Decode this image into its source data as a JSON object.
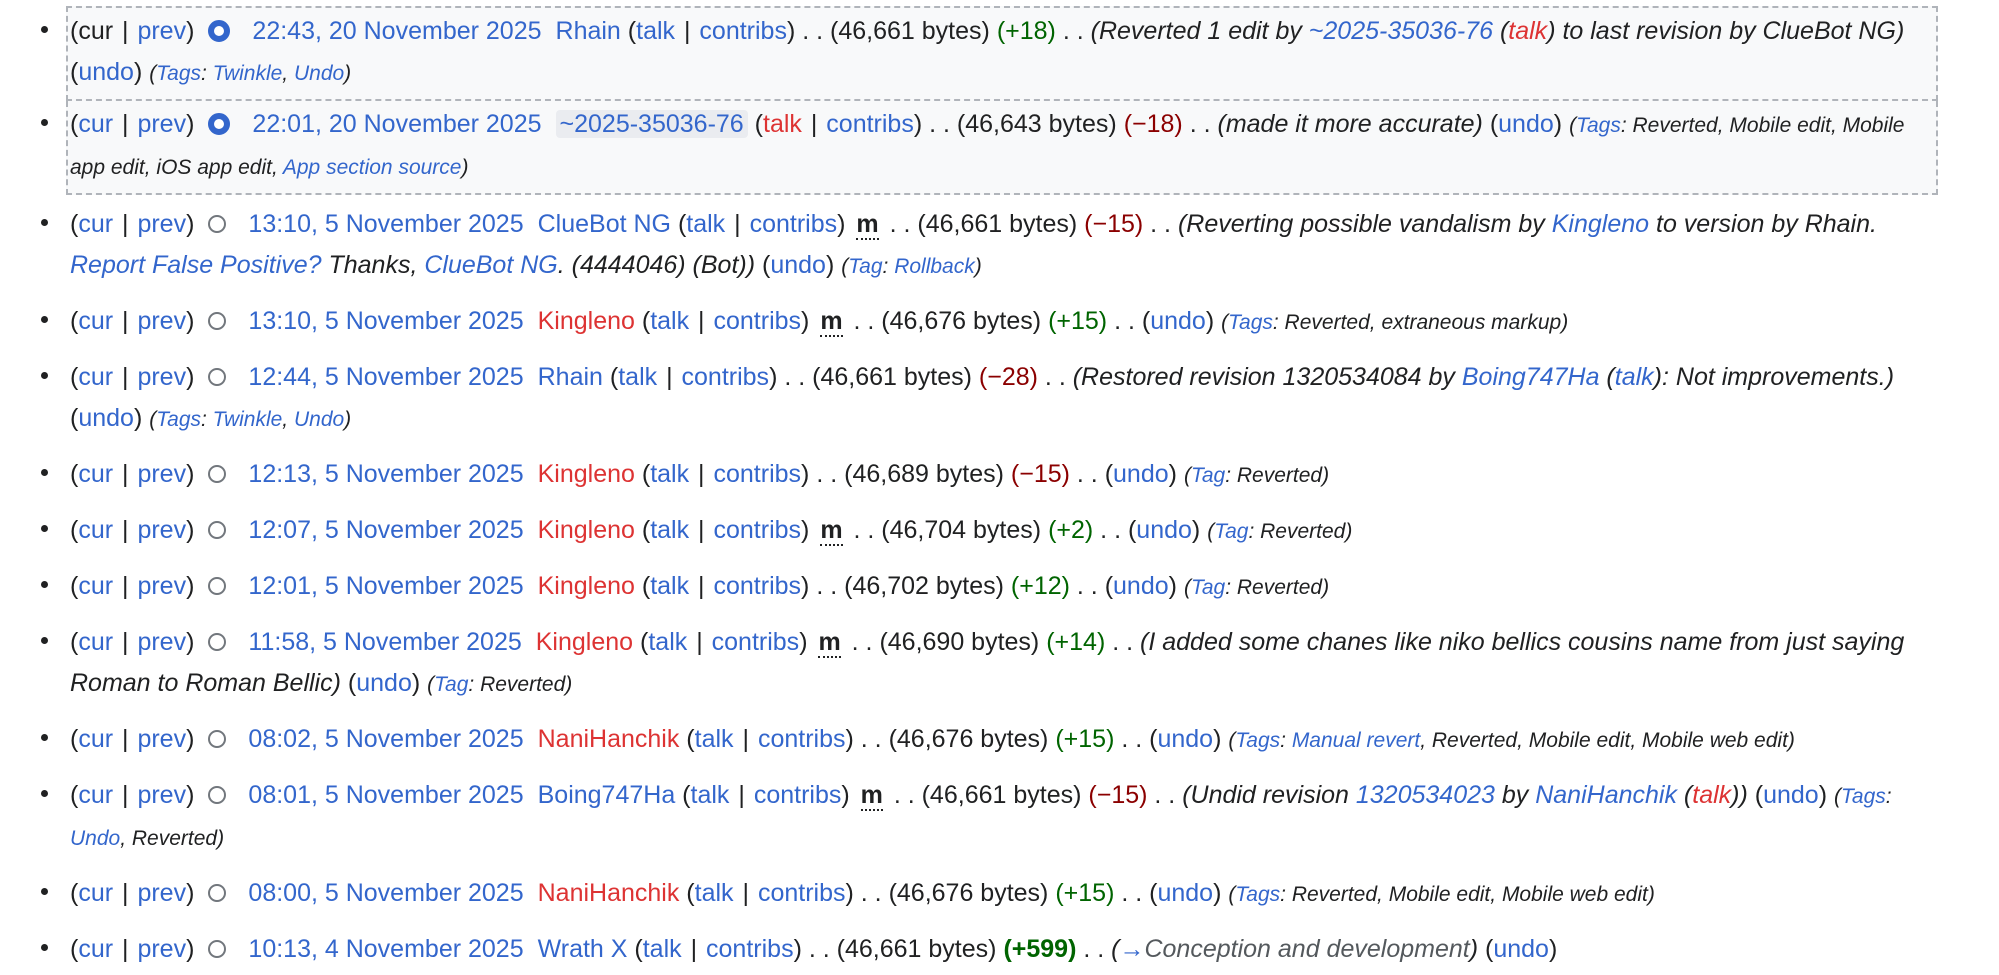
{
  "links": {
    "cur": "cur",
    "prev": "prev",
    "talk": "talk",
    "contribs": "contribs",
    "undo": "undo"
  },
  "labels": {
    "minor": "m",
    "tags": "Tags",
    "tag": "Tag"
  },
  "entries": [
    {
      "selected": true,
      "cur_is_link": false,
      "radio": "on",
      "timestamp": "22:43, 20 November 2025",
      "user": "Rhain",
      "user_red": false,
      "user_highlight": false,
      "minor": false,
      "size": "(46,661 bytes)",
      "diff": "(+18)",
      "diff_class": "pos",
      "summary_parts": [
        {
          "t": "Reverted 1 edit by ",
          "c": "txt"
        },
        {
          "t": "~2025-35036-76",
          "c": "lnk"
        },
        {
          "t": " (",
          "c": "txt"
        },
        {
          "t": "talk",
          "c": "red"
        },
        {
          "t": ") to last revision by ClueBot NG",
          "c": "txt"
        }
      ],
      "summary_paren": true,
      "undo": true,
      "tag_label": "Tags",
      "tags": [
        {
          "t": "Twinkle",
          "link": true
        },
        {
          "t": "Undo",
          "link": true
        }
      ]
    },
    {
      "selected": true,
      "cur_is_link": true,
      "radio": "on",
      "timestamp": "22:01, 20 November 2025",
      "user": "~2025-35036-76",
      "user_red": false,
      "user_highlight": true,
      "talk_red": true,
      "minor": false,
      "size": "(46,643 bytes)",
      "diff": "(−18)",
      "diff_class": "neg",
      "summary_parts": [
        {
          "t": "made it more accurate",
          "c": "txt"
        }
      ],
      "summary_paren": true,
      "undo": true,
      "tag_label": "Tags",
      "tags": [
        {
          "t": "Reverted",
          "link": false
        },
        {
          "t": "Mobile edit",
          "link": false
        },
        {
          "t": "Mobile app edit",
          "link": false
        },
        {
          "t": "iOS app edit",
          "link": false
        },
        {
          "t": "App section source",
          "link": true
        }
      ]
    },
    {
      "selected": false,
      "cur_is_link": true,
      "radio": "off",
      "timestamp": "13:10, 5 November 2025",
      "user": "ClueBot NG",
      "user_red": false,
      "minor": true,
      "size": "(46,661 bytes)",
      "diff": "(−15)",
      "diff_class": "neg",
      "summary_parts": [
        {
          "t": "Reverting possible vandalism by ",
          "c": "txt"
        },
        {
          "t": "Kingleno",
          "c": "lnk"
        },
        {
          "t": " to version by Rhain. ",
          "c": "txt"
        },
        {
          "t": "Report False Positive?",
          "c": "lnk"
        },
        {
          "t": " Thanks, ",
          "c": "txt"
        },
        {
          "t": "ClueBot NG",
          "c": "lnk"
        },
        {
          "t": ". (4444046) (Bot)",
          "c": "txt"
        }
      ],
      "summary_paren": true,
      "undo": true,
      "tag_label": "Tag",
      "tags": [
        {
          "t": "Rollback",
          "link": true
        }
      ]
    },
    {
      "selected": false,
      "cur_is_link": true,
      "radio": "off",
      "timestamp": "13:10, 5 November 2025",
      "user": "Kingleno",
      "user_red": true,
      "minor": true,
      "size": "(46,676 bytes)",
      "diff": "(+15)",
      "diff_class": "pos",
      "summary_parts": [],
      "undo": true,
      "tag_label": "Tags",
      "tags": [
        {
          "t": "Reverted",
          "link": false
        },
        {
          "t": "extraneous markup",
          "link": false
        }
      ]
    },
    {
      "selected": false,
      "cur_is_link": true,
      "radio": "off",
      "timestamp": "12:44, 5 November 2025",
      "user": "Rhain",
      "user_red": false,
      "minor": false,
      "size": "(46,661 bytes)",
      "diff": "(−28)",
      "diff_class": "neg",
      "summary_parts": [
        {
          "t": "Restored revision 1320534084 by ",
          "c": "txt"
        },
        {
          "t": "Boing747Ha",
          "c": "lnk"
        },
        {
          "t": " (",
          "c": "txt"
        },
        {
          "t": "talk",
          "c": "lnk"
        },
        {
          "t": "): Not improvements.",
          "c": "txt"
        }
      ],
      "summary_paren": true,
      "undo": true,
      "tag_label": "Tags",
      "tags": [
        {
          "t": "Twinkle",
          "link": true
        },
        {
          "t": "Undo",
          "link": true
        }
      ]
    },
    {
      "selected": false,
      "cur_is_link": true,
      "radio": "off",
      "timestamp": "12:13, 5 November 2025",
      "user": "Kingleno",
      "user_red": true,
      "minor": false,
      "size": "(46,689 bytes)",
      "diff": "(−15)",
      "diff_class": "neg",
      "summary_parts": [],
      "undo": true,
      "tag_label": "Tag",
      "tags": [
        {
          "t": "Reverted",
          "link": false
        }
      ]
    },
    {
      "selected": false,
      "cur_is_link": true,
      "radio": "off",
      "timestamp": "12:07, 5 November 2025",
      "user": "Kingleno",
      "user_red": true,
      "minor": true,
      "size": "(46,704 bytes)",
      "diff": "(+2)",
      "diff_class": "pos",
      "summary_parts": [],
      "undo": true,
      "tag_label": "Tag",
      "tags": [
        {
          "t": "Reverted",
          "link": false
        }
      ]
    },
    {
      "selected": false,
      "cur_is_link": true,
      "radio": "off",
      "timestamp": "12:01, 5 November 2025",
      "user": "Kingleno",
      "user_red": true,
      "minor": false,
      "size": "(46,702 bytes)",
      "diff": "(+12)",
      "diff_class": "pos",
      "summary_parts": [],
      "undo": true,
      "tag_label": "Tag",
      "tags": [
        {
          "t": "Reverted",
          "link": false
        }
      ]
    },
    {
      "selected": false,
      "cur_is_link": true,
      "radio": "off",
      "timestamp": "11:58, 5 November 2025",
      "user": "Kingleno",
      "user_red": true,
      "minor": true,
      "size": "(46,690 bytes)",
      "diff": "(+14)",
      "diff_class": "pos",
      "summary_parts": [
        {
          "t": "I added some chanes like niko bellics cousins name from just saying Roman to Roman Bellic",
          "c": "txt"
        }
      ],
      "summary_paren": true,
      "undo": true,
      "tag_label": "Tag",
      "tags": [
        {
          "t": "Reverted",
          "link": false
        }
      ]
    },
    {
      "selected": false,
      "cur_is_link": true,
      "radio": "off",
      "timestamp": "08:02, 5 November 2025",
      "user": "NaniHanchik",
      "user_red": true,
      "minor": false,
      "size": "(46,676 bytes)",
      "diff": "(+15)",
      "diff_class": "pos",
      "summary_parts": [],
      "undo": true,
      "tag_label": "Tags",
      "tags": [
        {
          "t": "Manual revert",
          "link": true
        },
        {
          "t": "Reverted",
          "link": false
        },
        {
          "t": "Mobile edit",
          "link": false
        },
        {
          "t": "Mobile web edit",
          "link": false
        }
      ]
    },
    {
      "selected": false,
      "cur_is_link": true,
      "radio": "off",
      "timestamp": "08:01, 5 November 2025",
      "user": "Boing747Ha",
      "user_red": false,
      "minor": true,
      "size": "(46,661 bytes)",
      "diff": "(−15)",
      "diff_class": "neg",
      "summary_parts": [
        {
          "t": "Undid revision ",
          "c": "txt"
        },
        {
          "t": "1320534023",
          "c": "lnk"
        },
        {
          "t": " by ",
          "c": "txt"
        },
        {
          "t": "NaniHanchik",
          "c": "lnk"
        },
        {
          "t": " (",
          "c": "txt"
        },
        {
          "t": "talk",
          "c": "red"
        },
        {
          "t": ")",
          "c": "txt"
        }
      ],
      "summary_paren": true,
      "undo": true,
      "tag_label": "Tags",
      "tags": [
        {
          "t": "Undo",
          "link": true
        },
        {
          "t": "Reverted",
          "link": false
        }
      ]
    },
    {
      "selected": false,
      "cur_is_link": true,
      "radio": "off",
      "timestamp": "08:00, 5 November 2025",
      "user": "NaniHanchik",
      "user_red": true,
      "minor": false,
      "size": "(46,676 bytes)",
      "diff": "(+15)",
      "diff_class": "pos",
      "summary_parts": [],
      "undo": true,
      "tag_label": "Tags",
      "tags": [
        {
          "t": "Reverted",
          "link": false
        },
        {
          "t": "Mobile edit",
          "link": false
        },
        {
          "t": "Mobile web edit",
          "link": false
        }
      ]
    },
    {
      "selected": false,
      "cur_is_link": true,
      "radio": "off",
      "timestamp": "10:13, 4 November 2025",
      "user": "Wrath X",
      "user_red": false,
      "minor": false,
      "size": "(46,661 bytes)",
      "diff": "(+599)",
      "diff_class": "posbig",
      "summary_parts": [
        {
          "t": "→",
          "c": "lnk"
        },
        {
          "t": "Conception and development",
          "c": "gray"
        }
      ],
      "summary_paren": true,
      "undo": true,
      "tag_label": "",
      "tags": []
    }
  ]
}
